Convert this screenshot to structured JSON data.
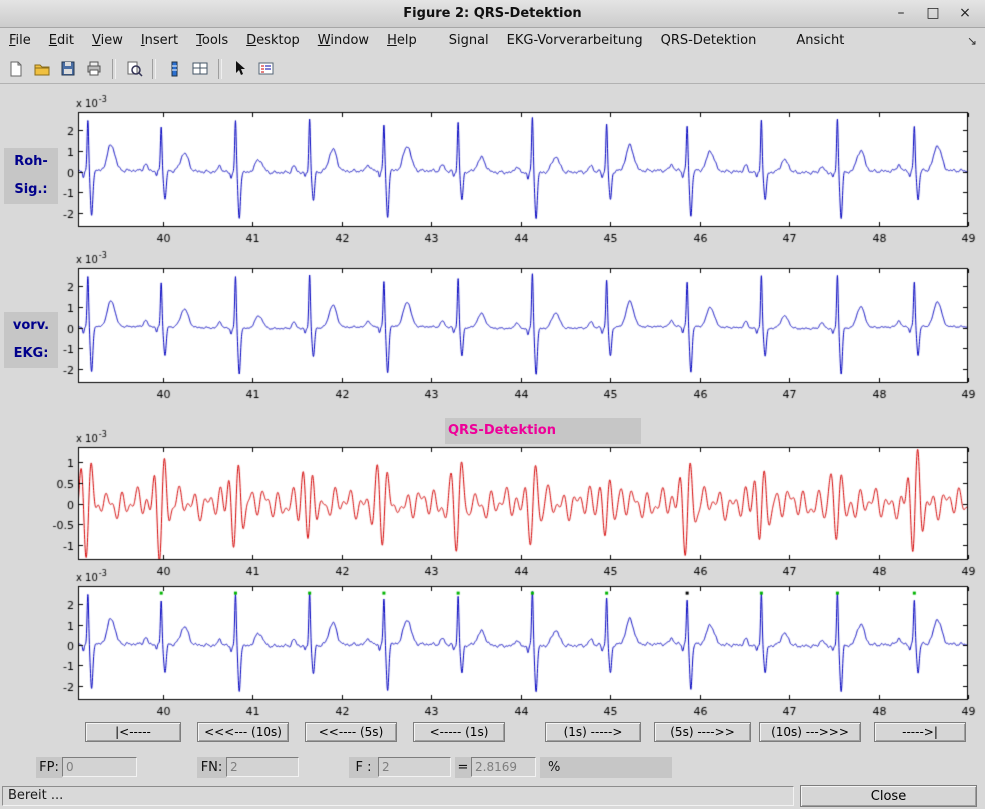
{
  "window": {
    "title": "Figure 2: QRS-Detektion",
    "minimize_glyph": "–",
    "maximize_glyph": "□",
    "close_glyph": "×"
  },
  "menu": {
    "items": [
      {
        "label": "File",
        "accel": true
      },
      {
        "label": "Edit",
        "accel": true
      },
      {
        "label": "View",
        "accel": true
      },
      {
        "label": "Insert",
        "accel": true
      },
      {
        "label": "Tools",
        "accel": true
      },
      {
        "label": "Desktop",
        "accel": true
      },
      {
        "label": "Window",
        "accel": true
      },
      {
        "label": "Help",
        "accel": true
      },
      {
        "label": "Signal",
        "accel": false
      },
      {
        "label": "EKG-Vorverarbeitung",
        "accel": false
      },
      {
        "label": "QRS-Detektion",
        "accel": false
      },
      {
        "label": "Ansicht",
        "accel": false
      }
    ],
    "dock_glyph": "↘"
  },
  "toolbar": {
    "icons": [
      "new-file",
      "open-file",
      "save",
      "print",
      "print-preview",
      "colorbar",
      "grid",
      "pointer",
      "legend"
    ]
  },
  "signal_labels": {
    "raw_line1": "Roh-",
    "raw_line2": "Sig.:",
    "pre_line1": "vorv.",
    "pre_line2": "EKG:",
    "qrs_title": "QRS-Detektion"
  },
  "nav_buttons": [
    "|<-----",
    "<<<--- (10s)",
    "<<---- (5s)",
    "<----- (1s)",
    "(1s) ----->",
    "(5s) ---->>",
    "(10s) --->>>",
    "----->|"
  ],
  "stats": {
    "fp_label": "FP:",
    "fp_value": "0",
    "fn_label": "FN:",
    "fn_value": "2",
    "f_label": "F :",
    "f_value": "2",
    "equals": "=",
    "f_measure_value": "2.8169",
    "percent": "%"
  },
  "statusbar": {
    "status_text": "Bereit ...",
    "close_label": "Close"
  },
  "colors": {
    "raw_signal": "#0000bf",
    "filtered_signal": "#d40000",
    "detection_marker": "#00b400",
    "missed_marker": "#000000",
    "signal_label_text": "#00008b",
    "qrs_title_text": "#ee0099"
  },
  "chart_data": [
    {
      "id": "raw-signal",
      "type": "line",
      "color": "#0000bf",
      "signal": "ecg-raw",
      "xlim": [
        39.05,
        49
      ],
      "ylim": [
        -2.7,
        2.9
      ],
      "xticks": [
        40,
        41,
        42,
        43,
        44,
        45,
        46,
        47,
        48,
        49
      ],
      "yticks": [
        2,
        1,
        0,
        -1,
        -2
      ],
      "exp_base": "x 10",
      "exp_power": "-3",
      "beats": [
        39.16,
        39.98,
        40.81,
        41.64,
        42.47,
        43.3,
        44.13,
        44.96,
        45.86,
        46.69,
        47.54,
        48.4
      ]
    },
    {
      "id": "preprocessed-ecg",
      "type": "line",
      "color": "#0000bf",
      "signal": "ecg-clean",
      "xlim": [
        39.05,
        49
      ],
      "ylim": [
        -2.7,
        2.9
      ],
      "xticks": [
        40,
        41,
        42,
        43,
        44,
        45,
        46,
        47,
        48,
        49
      ],
      "yticks": [
        2,
        1,
        0,
        -1,
        -2
      ],
      "exp_base": "x 10",
      "exp_power": "-3",
      "beats": [
        39.16,
        39.98,
        40.81,
        41.64,
        42.47,
        43.3,
        44.13,
        44.96,
        45.86,
        46.69,
        47.54,
        48.4
      ]
    },
    {
      "id": "qrs-filtered",
      "type": "line",
      "color": "#d40000",
      "signal": "qrs-filter",
      "xlim": [
        39.05,
        49
      ],
      "ylim": [
        -1.35,
        1.35
      ],
      "xticks": [
        40,
        41,
        42,
        43,
        44,
        45,
        46,
        47,
        48,
        49
      ],
      "yticks": [
        1,
        0.5,
        0,
        -0.5,
        -1
      ],
      "exp_base": "x 10",
      "exp_power": "-3",
      "beats": [
        39.16,
        39.98,
        40.81,
        41.64,
        42.47,
        43.3,
        44.13,
        44.96,
        45.86,
        46.69,
        47.54,
        48.4
      ]
    },
    {
      "id": "detection-result",
      "type": "line",
      "color": "#0000bf",
      "signal": "ecg-raw",
      "xlim": [
        39.05,
        49
      ],
      "ylim": [
        -2.7,
        2.9
      ],
      "xticks": [
        40,
        41,
        42,
        43,
        44,
        45,
        46,
        47,
        48,
        49
      ],
      "yticks": [
        2,
        1,
        0,
        -1,
        -2
      ],
      "exp_base": "x 10",
      "exp_power": "-3",
      "beats": [
        39.16,
        39.98,
        40.81,
        41.64,
        42.47,
        43.3,
        44.13,
        44.96,
        45.86,
        46.69,
        47.54,
        48.4
      ],
      "marker_y": 2.55,
      "markers": [
        {
          "t": 39.98,
          "color": "#00b400"
        },
        {
          "t": 40.81,
          "color": "#00b400"
        },
        {
          "t": 41.64,
          "color": "#00b400"
        },
        {
          "t": 42.47,
          "color": "#00b400"
        },
        {
          "t": 43.3,
          "color": "#00b400"
        },
        {
          "t": 44.13,
          "color": "#00b400"
        },
        {
          "t": 44.96,
          "color": "#00b400"
        },
        {
          "t": 45.86,
          "color": "#000000"
        },
        {
          "t": 46.69,
          "color": "#00b400"
        },
        {
          "t": 47.54,
          "color": "#00b400"
        },
        {
          "t": 48.4,
          "color": "#00b400"
        }
      ]
    }
  ]
}
